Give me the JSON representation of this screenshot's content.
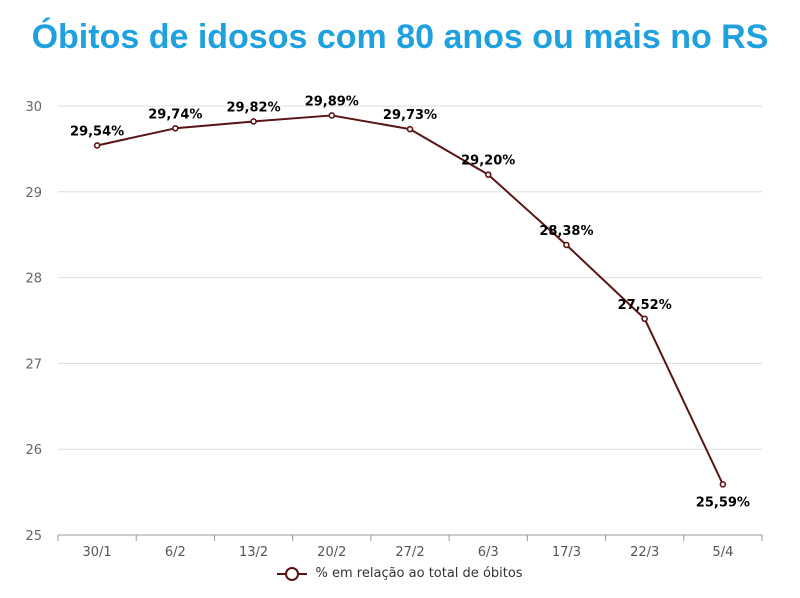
{
  "colors": {
    "title": "#1fa1e0",
    "series": "#5a1414",
    "grid": "#dddddd",
    "axis": "#999999"
  },
  "chart_data": {
    "type": "line",
    "title": "Óbitos de idosos com 80 anos ou mais no RS",
    "xlabel": "",
    "ylabel": "",
    "categories": [
      "30/1",
      "6/2",
      "13/2",
      "20/2",
      "27/2",
      "6/3",
      "17/3",
      "22/3",
      "5/4"
    ],
    "ylim": [
      25,
      30
    ],
    "yticks": [
      "25",
      "26",
      "27",
      "28",
      "29",
      "30"
    ],
    "grid": true,
    "legend_position": "bottom",
    "series": [
      {
        "name": "% em relação ao total de óbitos",
        "values": [
          29.54,
          29.74,
          29.82,
          29.89,
          29.73,
          29.2,
          28.38,
          27.52,
          25.59
        ],
        "labels": [
          "29,54%",
          "29,74%",
          "29,82%",
          "29,89%",
          "29,73%",
          "29,20%",
          "28,38%",
          "27,52%",
          "25,59%"
        ]
      }
    ]
  }
}
